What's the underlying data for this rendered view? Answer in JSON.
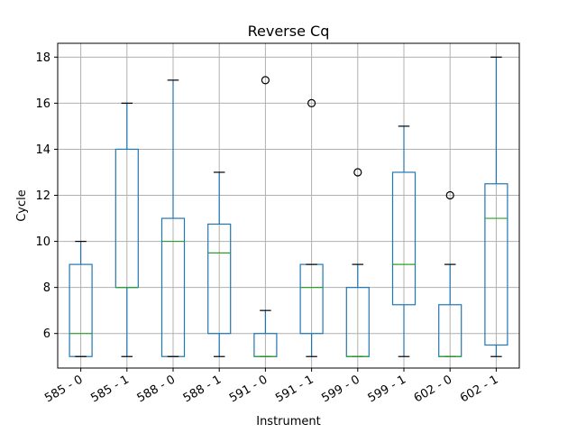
{
  "chart_data": {
    "type": "box",
    "title": "Reverse Cq",
    "xlabel": "Instrument",
    "ylabel": "Cycle",
    "ylim": [
      4.5,
      18.6
    ],
    "yticks": [
      6,
      8,
      10,
      12,
      14,
      16,
      18
    ],
    "grid": true,
    "colors": {
      "box": "#1f77b4",
      "median": "#2ca02c",
      "cap": "#000000",
      "grid": "#b0b0b0"
    },
    "categories": [
      "585 - 0",
      "585 - 1",
      "588 - 0",
      "588 - 1",
      "591 - 0",
      "591 - 1",
      "599 - 0",
      "599 - 1",
      "602 - 0",
      "602 - 1"
    ],
    "boxes": [
      {
        "whislo": 5,
        "q1": 5,
        "med": 6,
        "q3": 9,
        "whishi": 10,
        "fliers": []
      },
      {
        "whislo": 5,
        "q1": 8,
        "med": 8,
        "q3": 14,
        "whishi": 16,
        "fliers": []
      },
      {
        "whislo": 5,
        "q1": 5,
        "med": 10,
        "q3": 11,
        "whishi": 17,
        "fliers": []
      },
      {
        "whislo": 5,
        "q1": 6,
        "med": 9.5,
        "q3": 10.75,
        "whishi": 13,
        "fliers": []
      },
      {
        "whislo": 5,
        "q1": 5,
        "med": 5,
        "q3": 6,
        "whishi": 7,
        "fliers": [
          17
        ]
      },
      {
        "whislo": 5,
        "q1": 6,
        "med": 8,
        "q3": 9,
        "whishi": 9,
        "fliers": [
          16
        ]
      },
      {
        "whislo": 5,
        "q1": 5,
        "med": 5,
        "q3": 8,
        "whishi": 9,
        "fliers": [
          13
        ]
      },
      {
        "whislo": 5,
        "q1": 7.25,
        "med": 9,
        "q3": 13,
        "whishi": 15,
        "fliers": []
      },
      {
        "whislo": 5,
        "q1": 5,
        "med": 5,
        "q3": 7.25,
        "whishi": 9,
        "fliers": [
          12
        ]
      },
      {
        "whislo": 5,
        "q1": 5.5,
        "med": 11,
        "q3": 12.5,
        "whishi": 18,
        "fliers": []
      }
    ]
  }
}
